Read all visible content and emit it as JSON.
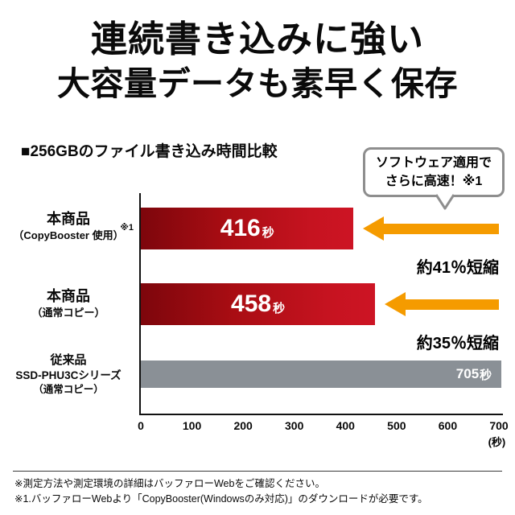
{
  "title": {
    "line1": "連続書き込みに強い",
    "line2": "大容量データも素早く保存"
  },
  "chart_heading": "■256GBのファイル書き込み時間比較",
  "callout": {
    "line1": "ソフトウェア適用で",
    "line2": "さらに高速！※1"
  },
  "chart_data": {
    "type": "bar",
    "orientation": "horizontal",
    "title": "256GBのファイル書き込み時間比較",
    "categories": [
      "本商品（CopyBooster 使用）※1",
      "本商品（通常コピー）",
      "従来品SSD-PHU3Cシリーズ（通常コピー）"
    ],
    "values": [
      416,
      458,
      705
    ],
    "unit": "秒",
    "xlim": [
      0,
      700
    ],
    "x_ticks": [
      "0",
      "100",
      "200",
      "300",
      "400",
      "500",
      "600",
      "700"
    ],
    "x_unit_label": "(秒)",
    "grid": false,
    "legend": "none",
    "rows": [
      {
        "label_line1": "本商品",
        "label_note": "※1",
        "label_line2": "（CopyBooster 使用）",
        "value": 416,
        "value_number": "416",
        "value_unit": "秒",
        "reduction": "約41％短縮",
        "bar_color": "red"
      },
      {
        "label_line1": "本商品",
        "label_line2": "（通常コピー）",
        "value": 458,
        "value_number": "458",
        "value_unit": "秒",
        "reduction": "約35％短縮",
        "bar_color": "red"
      },
      {
        "label_line1": "従来品",
        "label_line2": "SSD-PHU3Cシリーズ",
        "label_line3": "（通常コピー）",
        "value": 705,
        "value_number": "705",
        "value_unit": "秒",
        "bar_color": "gray"
      }
    ],
    "colors": {
      "bar_red": "#c61320",
      "bar_red_dark": "#7d060c",
      "bar_gray": "#8a9096",
      "arrow_orange": "#f59b00"
    }
  },
  "footnotes": [
    "※測定方法や測定環境の詳細はバッファローWebをご確認ください。",
    "※1.バッファローWebより「CopyBooster(Windowsのみ対応)」のダウンロードが必要です。"
  ]
}
